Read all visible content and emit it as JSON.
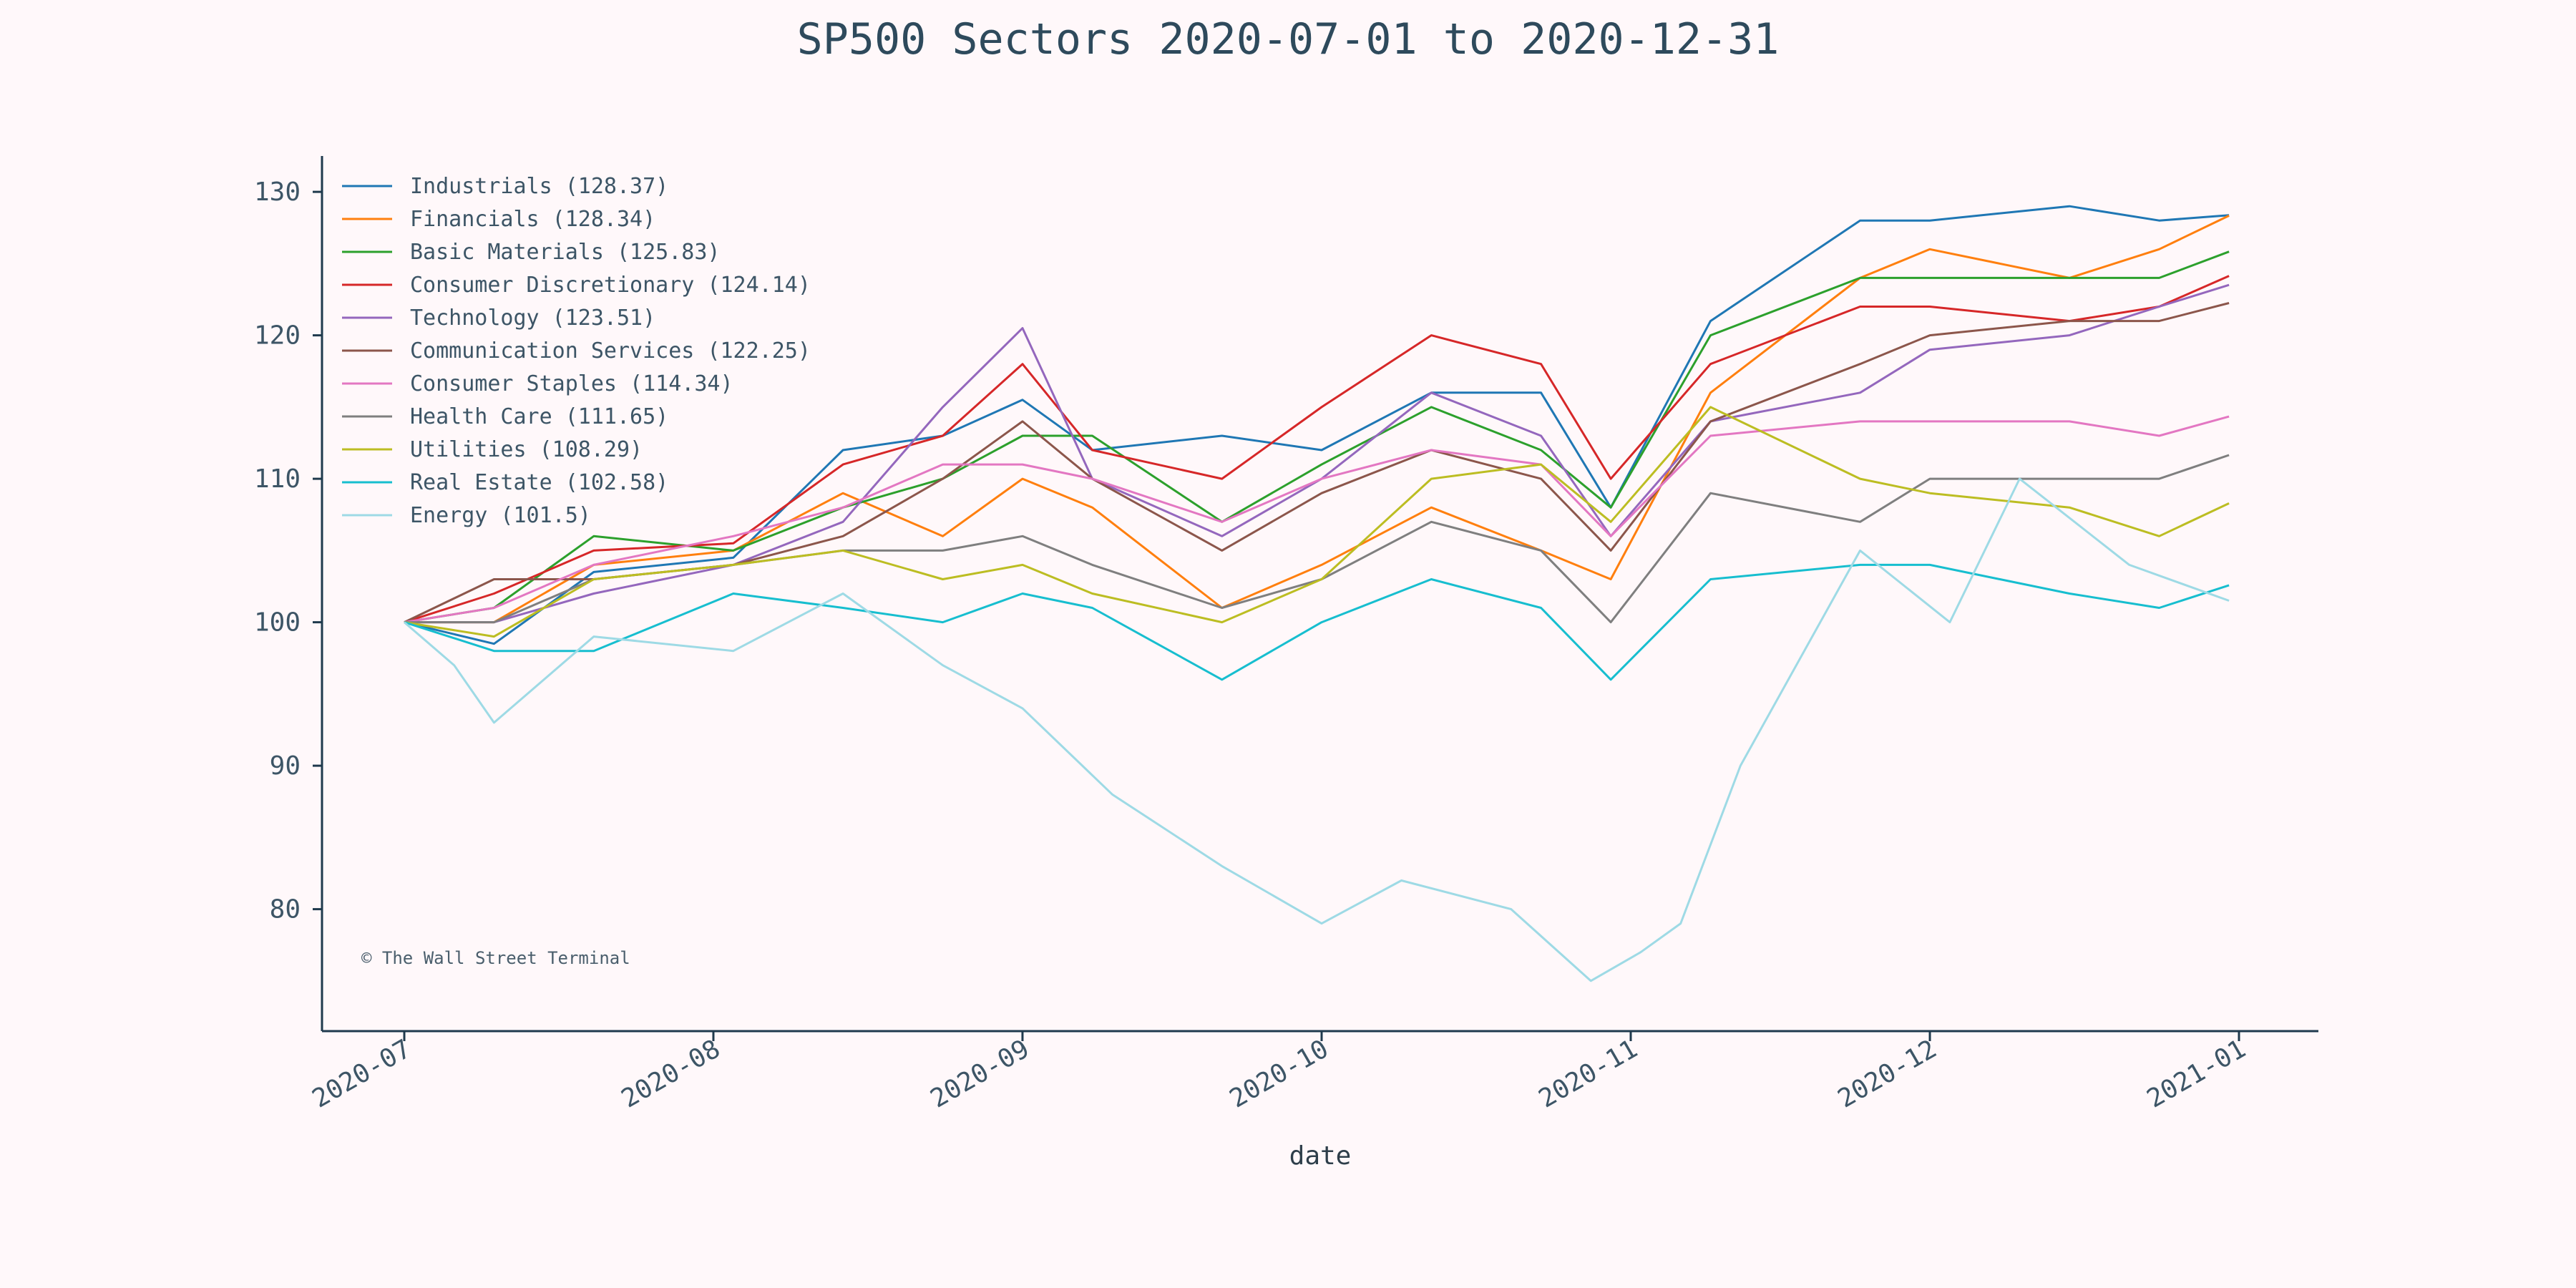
{
  "chart_data": {
    "type": "line",
    "title": "SP500 Sectors 2020-07-01 to 2020-12-31",
    "xlabel": "date",
    "ylabel": "",
    "x_range": [
      "2020-07-01",
      "2021-01-01"
    ],
    "ylim": [
      71.5,
      132.5
    ],
    "y_ticks": [
      80,
      90,
      100,
      110,
      120,
      130
    ],
    "x_ticks": [
      {
        "date": "2020-07-01",
        "label": "2020-07"
      },
      {
        "date": "2020-08-01",
        "label": "2020-08"
      },
      {
        "date": "2020-09-01",
        "label": "2020-09"
      },
      {
        "date": "2020-10-01",
        "label": "2020-10"
      },
      {
        "date": "2020-11-01",
        "label": "2020-11"
      },
      {
        "date": "2020-12-01",
        "label": "2020-12"
      },
      {
        "date": "2021-01-01",
        "label": "2021-01"
      }
    ],
    "legend_position": "top-left",
    "grid": false,
    "watermark": "© The Wall Street Terminal",
    "series": [
      {
        "name": "Industrials (128.37)",
        "color": "#1f77b4",
        "x": [
          "2020-07-01",
          "2020-07-10",
          "2020-07-20",
          "2020-08-03",
          "2020-08-14",
          "2020-08-24",
          "2020-09-01",
          "2020-09-08",
          "2020-09-21",
          "2020-10-01",
          "2020-10-12",
          "2020-10-23",
          "2020-10-30",
          "2020-11-09",
          "2020-11-24",
          "2020-12-01",
          "2020-12-15",
          "2020-12-24",
          "2020-12-31"
        ],
        "values": [
          100,
          98.5,
          103.5,
          104.5,
          112,
          113,
          115.5,
          112,
          113,
          112,
          116,
          116,
          108,
          121,
          128,
          128,
          129,
          128,
          128.37
        ]
      },
      {
        "name": "Financials (128.34)",
        "color": "#ff7f0e",
        "x": [
          "2020-07-01",
          "2020-07-10",
          "2020-07-20",
          "2020-08-03",
          "2020-08-14",
          "2020-08-24",
          "2020-09-01",
          "2020-09-08",
          "2020-09-21",
          "2020-10-01",
          "2020-10-12",
          "2020-10-23",
          "2020-10-30",
          "2020-11-09",
          "2020-11-24",
          "2020-12-01",
          "2020-12-15",
          "2020-12-24",
          "2020-12-31"
        ],
        "values": [
          100,
          100,
          104,
          105,
          109,
          106,
          110,
          108,
          101,
          104,
          108,
          105,
          103,
          116,
          124,
          126,
          124,
          126,
          128.34
        ]
      },
      {
        "name": "Basic Materials (125.83)",
        "color": "#2ca02c",
        "x": [
          "2020-07-01",
          "2020-07-10",
          "2020-07-20",
          "2020-08-03",
          "2020-08-14",
          "2020-08-24",
          "2020-09-01",
          "2020-09-08",
          "2020-09-21",
          "2020-10-01",
          "2020-10-12",
          "2020-10-23",
          "2020-10-30",
          "2020-11-09",
          "2020-11-24",
          "2020-12-01",
          "2020-12-15",
          "2020-12-24",
          "2020-12-31"
        ],
        "values": [
          100,
          101,
          106,
          105,
          108,
          110,
          113,
          113,
          107,
          111,
          115,
          112,
          108,
          120,
          124,
          124,
          124,
          124,
          125.83
        ]
      },
      {
        "name": "Consumer Discretionary (124.14)",
        "color": "#d62728",
        "x": [
          "2020-07-01",
          "2020-07-10",
          "2020-07-20",
          "2020-08-03",
          "2020-08-14",
          "2020-08-24",
          "2020-09-01",
          "2020-09-08",
          "2020-09-21",
          "2020-10-01",
          "2020-10-12",
          "2020-10-23",
          "2020-10-30",
          "2020-11-09",
          "2020-11-24",
          "2020-12-01",
          "2020-12-15",
          "2020-12-24",
          "2020-12-31"
        ],
        "values": [
          100,
          102,
          105,
          105.5,
          111,
          113,
          118,
          112,
          110,
          115,
          120,
          118,
          110,
          118,
          122,
          122,
          121,
          122,
          124.14
        ]
      },
      {
        "name": "Technology (123.51)",
        "color": "#9467bd",
        "x": [
          "2020-07-01",
          "2020-07-10",
          "2020-07-20",
          "2020-08-03",
          "2020-08-14",
          "2020-08-24",
          "2020-09-01",
          "2020-09-08",
          "2020-09-21",
          "2020-10-01",
          "2020-10-12",
          "2020-10-23",
          "2020-10-30",
          "2020-11-09",
          "2020-11-24",
          "2020-12-01",
          "2020-12-15",
          "2020-12-24",
          "2020-12-31"
        ],
        "values": [
          100,
          100,
          102,
          104,
          107,
          115,
          120.5,
          110,
          106,
          110,
          116,
          113,
          106,
          114,
          116,
          119,
          120,
          122,
          123.51
        ]
      },
      {
        "name": "Communication Services (122.25)",
        "color": "#8c564b",
        "x": [
          "2020-07-01",
          "2020-07-10",
          "2020-07-20",
          "2020-08-03",
          "2020-08-14",
          "2020-08-24",
          "2020-09-01",
          "2020-09-08",
          "2020-09-21",
          "2020-10-01",
          "2020-10-12",
          "2020-10-23",
          "2020-10-30",
          "2020-11-09",
          "2020-11-24",
          "2020-12-01",
          "2020-12-15",
          "2020-12-24",
          "2020-12-31"
        ],
        "values": [
          100,
          103,
          103,
          104,
          106,
          110,
          114,
          110,
          105,
          109,
          112,
          110,
          105,
          114,
          118,
          120,
          121,
          121,
          122.25
        ]
      },
      {
        "name": "Consumer Staples (114.34)",
        "color": "#e377c2",
        "x": [
          "2020-07-01",
          "2020-07-10",
          "2020-07-20",
          "2020-08-03",
          "2020-08-14",
          "2020-08-24",
          "2020-09-01",
          "2020-09-08",
          "2020-09-21",
          "2020-10-01",
          "2020-10-12",
          "2020-10-23",
          "2020-10-30",
          "2020-11-09",
          "2020-11-24",
          "2020-12-01",
          "2020-12-15",
          "2020-12-24",
          "2020-12-31"
        ],
        "values": [
          100,
          101,
          104,
          106,
          108,
          111,
          111,
          110,
          107,
          110,
          112,
          111,
          106,
          113,
          114,
          114,
          114,
          113,
          114.34
        ]
      },
      {
        "name": "Health Care (111.65)",
        "color": "#7f7f7f",
        "x": [
          "2020-07-01",
          "2020-07-10",
          "2020-07-20",
          "2020-08-03",
          "2020-08-14",
          "2020-08-24",
          "2020-09-01",
          "2020-09-08",
          "2020-09-21",
          "2020-10-01",
          "2020-10-12",
          "2020-10-23",
          "2020-10-30",
          "2020-11-09",
          "2020-11-24",
          "2020-12-01",
          "2020-12-15",
          "2020-12-24",
          "2020-12-31"
        ],
        "values": [
          100,
          100,
          103,
          104,
          105,
          105,
          106,
          104,
          101,
          103,
          107,
          105,
          100,
          109,
          107,
          110,
          110,
          110,
          111.65
        ]
      },
      {
        "name": "Utilities (108.29)",
        "color": "#bcbd22",
        "x": [
          "2020-07-01",
          "2020-07-10",
          "2020-07-20",
          "2020-08-03",
          "2020-08-14",
          "2020-08-24",
          "2020-09-01",
          "2020-09-08",
          "2020-09-21",
          "2020-10-01",
          "2020-10-12",
          "2020-10-23",
          "2020-10-30",
          "2020-11-09",
          "2020-11-24",
          "2020-12-01",
          "2020-12-15",
          "2020-12-24",
          "2020-12-31"
        ],
        "values": [
          100,
          99,
          103,
          104,
          105,
          103,
          104,
          102,
          100,
          103,
          110,
          111,
          107,
          115,
          110,
          109,
          108,
          106,
          108.29
        ]
      },
      {
        "name": "Real Estate (102.58)",
        "color": "#17becf",
        "x": [
          "2020-07-01",
          "2020-07-10",
          "2020-07-20",
          "2020-08-03",
          "2020-08-14",
          "2020-08-24",
          "2020-09-01",
          "2020-09-08",
          "2020-09-21",
          "2020-10-01",
          "2020-10-12",
          "2020-10-23",
          "2020-10-30",
          "2020-11-09",
          "2020-11-24",
          "2020-12-01",
          "2020-12-15",
          "2020-12-24",
          "2020-12-31"
        ],
        "values": [
          100,
          98,
          98,
          102,
          101,
          100,
          102,
          101,
          96,
          100,
          103,
          101,
          96,
          103,
          104,
          104,
          102,
          101,
          102.58
        ]
      },
      {
        "name": "Energy (101.5)",
        "color": "#9edae5",
        "x": [
          "2020-07-01",
          "2020-07-06",
          "2020-07-10",
          "2020-07-20",
          "2020-08-03",
          "2020-08-14",
          "2020-08-24",
          "2020-09-01",
          "2020-09-10",
          "2020-09-21",
          "2020-10-01",
          "2020-10-09",
          "2020-10-20",
          "2020-10-28",
          "2020-11-02",
          "2020-11-06",
          "2020-11-12",
          "2020-11-24",
          "2020-12-03",
          "2020-12-10",
          "2020-12-21",
          "2020-12-31"
        ],
        "values": [
          100,
          97,
          93,
          99,
          98,
          102,
          97,
          94,
          88,
          83,
          79,
          82,
          80,
          75,
          77,
          79,
          90,
          105,
          100,
          110,
          104,
          101.5
        ]
      }
    ]
  }
}
